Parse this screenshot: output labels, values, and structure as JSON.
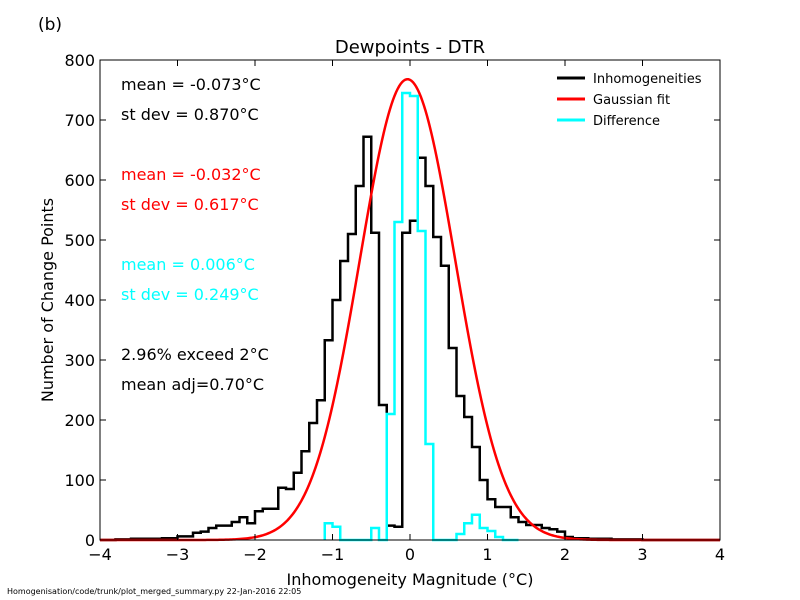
{
  "panel_label": "(b)",
  "footer": "Homogenisation/code/trunk/plot_merged_summary.py   22-Jan-2016 22:05",
  "stats": {
    "inhomogeneities": {
      "mean": "mean = -0.073°C",
      "stdev": "st dev =  0.870°C",
      "color": "#000000"
    },
    "gaussian": {
      "mean": "mean = -0.032°C",
      "stdev": "st dev =  0.617°C",
      "color": "#ff0000"
    },
    "difference": {
      "mean": "mean =  0.006°C",
      "stdev": "st dev =  0.249°C",
      "color": "#00ffff"
    },
    "exceed": "2.96% exceed 2°C",
    "mean_adj": "mean adj=0.70°C"
  },
  "chart_data": {
    "type": "line",
    "title": "Dewpoints - DTR",
    "xlabel": "Inhomogeneity Magnitude (°C)",
    "ylabel": "Number of Change Points",
    "xlim": [
      -4,
      4
    ],
    "ylim": [
      0,
      800
    ],
    "xticks": [
      -4,
      -3,
      -2,
      -1,
      0,
      1,
      2,
      3,
      4
    ],
    "xtick_labels": [
      "−4",
      "−3",
      "−2",
      "−1",
      "0",
      "1",
      "2",
      "3",
      "4"
    ],
    "yticks": [
      0,
      100,
      200,
      300,
      400,
      500,
      600,
      700,
      800
    ],
    "grid": false,
    "legend_position": "top-right",
    "bin_width": 0.1,
    "series": [
      {
        "name": "Inhomogeneities",
        "color": "#000000",
        "style": "step",
        "x": [
          -4.0,
          -3.9,
          -3.8,
          -3.7,
          -3.6,
          -3.5,
          -3.4,
          -3.3,
          -3.2,
          -3.1,
          -3.0,
          -2.9,
          -2.8,
          -2.7,
          -2.6,
          -2.5,
          -2.4,
          -2.3,
          -2.2,
          -2.1,
          -2.0,
          -1.9,
          -1.8,
          -1.7,
          -1.6,
          -1.5,
          -1.4,
          -1.3,
          -1.2,
          -1.1,
          -1.0,
          -0.9,
          -0.8,
          -0.7,
          -0.6,
          -0.5,
          -0.4,
          -0.3,
          -0.2,
          -0.1,
          0.0,
          0.1,
          0.2,
          0.3,
          0.4,
          0.5,
          0.6,
          0.7,
          0.8,
          0.9,
          1.0,
          1.1,
          1.2,
          1.3,
          1.4,
          1.5,
          1.6,
          1.7,
          1.8,
          1.9,
          2.0,
          2.1,
          2.2,
          2.3,
          2.4,
          2.5,
          2.6,
          2.7,
          2.8,
          2.9,
          3.0,
          3.1,
          3.2,
          3.3,
          3.4,
          3.5,
          3.6,
          3.7,
          3.8,
          3.9
        ],
        "values": [
          0,
          0,
          1,
          1,
          2,
          2,
          2,
          2,
          3,
          3,
          6,
          6,
          12,
          14,
          20,
          24,
          24,
          30,
          38,
          28,
          48,
          52,
          52,
          87,
          85,
          112,
          148,
          195,
          233,
          333,
          400,
          465,
          510,
          590,
          672,
          512,
          225,
          24,
          22,
          512,
          532,
          637,
          590,
          505,
          457,
          320,
          240,
          205,
          155,
          100,
          68,
          55,
          55,
          38,
          30,
          25,
          25,
          20,
          18,
          14,
          5,
          3,
          3,
          2,
          2,
          2,
          1,
          1,
          1,
          1,
          0,
          0,
          0,
          0,
          0,
          0,
          0,
          0,
          0,
          0
        ]
      },
      {
        "name": "Gaussian fit",
        "color": "#ff0000",
        "style": "line",
        "mean": -0.032,
        "stdev": 0.617,
        "peak": 768
      },
      {
        "name": "Difference",
        "color": "#00ffff",
        "style": "step",
        "x": [
          -1.1,
          -1.0,
          -0.9,
          -0.8,
          -0.7,
          -0.6,
          -0.5,
          -0.4,
          -0.3,
          -0.2,
          -0.1,
          0.0,
          0.1,
          0.2,
          0.3,
          0.4,
          0.5,
          0.6,
          0.7,
          0.8,
          0.9,
          1.0,
          1.1,
          1.2,
          1.3
        ],
        "values": [
          28,
          22,
          0,
          0,
          0,
          0,
          20,
          0,
          210,
          530,
          745,
          740,
          515,
          160,
          0,
          0,
          0,
          10,
          28,
          42,
          20,
          15,
          5,
          0,
          0
        ]
      }
    ]
  }
}
